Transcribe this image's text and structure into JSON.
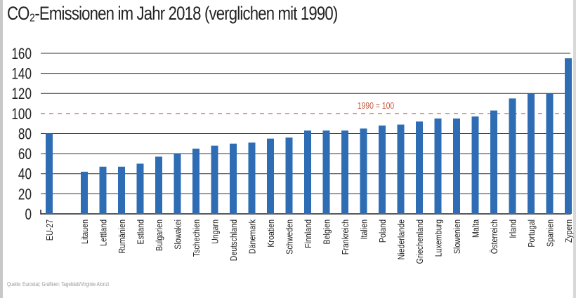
{
  "chart_data": {
    "type": "bar",
    "title": "CO₂-Emissionen im Jahr 2018 (verglichen mit 1990)",
    "categories": [
      "EU-27",
      "Litauen",
      "Lettland",
      "Rumänien",
      "Estland",
      "Bulgarien",
      "Slowakei",
      "Tschechien",
      "Ungarn",
      "Deutschland",
      "Dänemark",
      "Kroatien",
      "Schweden",
      "Finnland",
      "Belgien",
      "Frankreich",
      "Italien",
      "Poland",
      "Niederlande",
      "Griechenland",
      "Luxemburg",
      "Slowenien",
      "Malta",
      "Österreich",
      "Irland",
      "Portugal",
      "Spanien",
      "Zypern"
    ],
    "values": [
      80,
      42,
      47,
      47,
      50,
      57,
      60,
      65,
      68,
      70,
      71,
      75,
      76,
      83,
      83,
      83,
      85,
      88,
      89,
      92,
      95,
      95,
      97,
      103,
      115,
      120,
      120,
      155
    ],
    "ylim": [
      0,
      160
    ],
    "yticks": [
      "0",
      "20",
      "40",
      "60",
      "80",
      "100",
      "120",
      "140",
      "160"
    ],
    "grid": true,
    "reference_line": {
      "value": 100,
      "label": "1990 = 100",
      "color": "#d9806a"
    },
    "bar_color": "#2e6db4",
    "xlabel": "",
    "ylabel": ""
  },
  "source": "Quelle: Eurostat; Grafiken: Tageblatt/Virginie Alonzi"
}
